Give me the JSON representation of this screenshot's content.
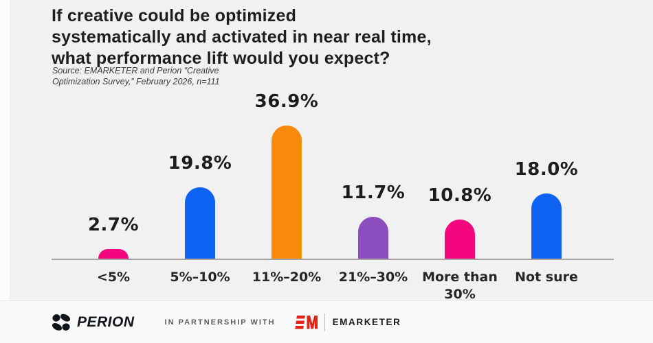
{
  "title": {
    "lines": [
      "If creative could be optimized",
      "systematically and activated in near real time,",
      "what performance lift would you expect?"
    ]
  },
  "source": {
    "line1": "Source: EMARKETER and Perion “Creative",
    "line2": "Optimization Survey,” February 2026, n=111"
  },
  "chart_data": {
    "type": "bar",
    "title": "If creative could be optimized systematically and activated in near real time, what performance lift would you expect?",
    "categories": [
      "<5%",
      "5%–10%",
      "11%–20%",
      "21%–30%",
      "More than 30%",
      "Not sure"
    ],
    "values": [
      2.7,
      19.8,
      36.9,
      11.7,
      10.8,
      18.0
    ],
    "value_labels": [
      "2.7%",
      "19.8%",
      "36.9%",
      "11.7%",
      "10.8%",
      "18.0%"
    ],
    "bar_colors": [
      "#f4077e",
      "#0e63f3",
      "#f9890b",
      "#8c4ebf",
      "#f4077e",
      "#0e63f3"
    ],
    "xlabel": "",
    "ylabel": "",
    "ylim": [
      0,
      40
    ],
    "grid": false,
    "legend": false,
    "value_label_position": "above",
    "bar_shape": "rounded-top"
  },
  "colors": {
    "background": "#f1f1f2",
    "axis": "#a6a3a0",
    "text": "#1e1e1e",
    "emarketer_red": "#e2231a"
  },
  "footer": {
    "perion_label": "PERION",
    "partnership_text": "IN PARTNERSHIP WITH",
    "emarketer_label": "EMARKETER"
  }
}
